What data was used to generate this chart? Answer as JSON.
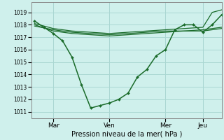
{
  "xlabel": "Pression niveau de la mer( hPa )",
  "background_color": "#cff0ec",
  "grid_color": "#aad8d3",
  "line_color": "#1a6b2a",
  "ylim": [
    1010.5,
    1019.8
  ],
  "yticks": [
    1011,
    1012,
    1013,
    1014,
    1015,
    1016,
    1017,
    1018,
    1019
  ],
  "day_labels": [
    "Mar",
    "Ven",
    "Mer",
    "Jeu"
  ],
  "day_ticks": [
    12,
    48,
    84,
    108
  ],
  "vlines": [
    12,
    48,
    84,
    108
  ],
  "xlim": [
    -2,
    120
  ],
  "series1_x": [
    0,
    6,
    12,
    18,
    24,
    30,
    36,
    42,
    48,
    54,
    60,
    66,
    72,
    78,
    84,
    90,
    96,
    102,
    108,
    114,
    120
  ],
  "series1_y": [
    1018.3,
    1017.8,
    1017.3,
    1016.7,
    1015.4,
    1013.2,
    1011.3,
    1011.5,
    1011.7,
    1012.0,
    1012.5,
    1013.8,
    1014.4,
    1015.5,
    1016.0,
    1017.6,
    1018.0,
    1018.0,
    1017.4,
    1018.0,
    1018.8
  ],
  "series2_x": [
    0,
    12,
    24,
    36,
    48,
    60,
    72,
    84,
    96,
    108,
    120
  ],
  "series2_y": [
    1018.0,
    1017.5,
    1017.3,
    1017.2,
    1017.1,
    1017.2,
    1017.3,
    1017.4,
    1017.5,
    1017.5,
    1017.7
  ],
  "series3_x": [
    0,
    12,
    24,
    36,
    48,
    60,
    72,
    84,
    96,
    108,
    120
  ],
  "series3_y": [
    1017.9,
    1017.6,
    1017.4,
    1017.3,
    1017.2,
    1017.3,
    1017.4,
    1017.5,
    1017.5,
    1017.6,
    1017.8
  ],
  "series4_x": [
    0,
    12,
    24,
    36,
    48,
    60,
    72,
    84,
    96,
    108,
    114,
    120
  ],
  "series4_y": [
    1018.1,
    1017.7,
    1017.5,
    1017.4,
    1017.3,
    1017.4,
    1017.5,
    1017.6,
    1017.7,
    1017.8,
    1019.0,
    1019.2
  ],
  "marker_x": [
    0,
    6,
    12,
    18,
    24,
    30,
    36,
    42,
    48,
    54,
    60,
    66,
    72,
    78,
    84,
    90,
    96,
    102,
    108,
    114,
    120
  ],
  "marker_y": [
    1018.3,
    1017.8,
    1017.3,
    1016.7,
    1015.4,
    1013.2,
    1011.3,
    1011.5,
    1011.7,
    1012.0,
    1012.5,
    1013.8,
    1014.4,
    1015.5,
    1016.0,
    1017.6,
    1018.0,
    1018.0,
    1017.4,
    1018.0,
    1018.8
  ]
}
